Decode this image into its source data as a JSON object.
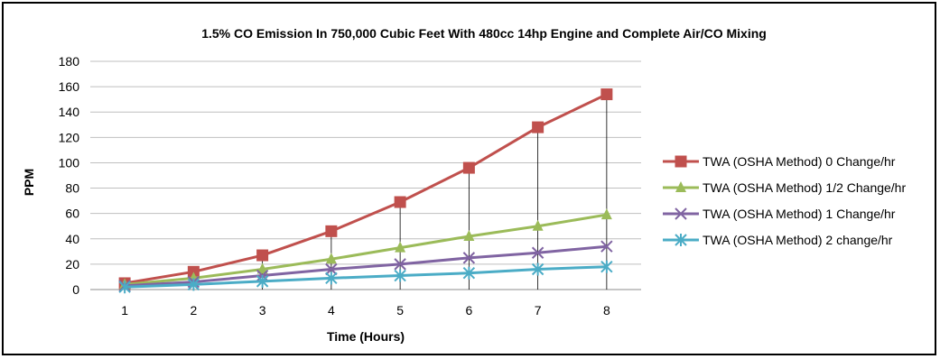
{
  "chart_data": {
    "type": "line",
    "title": "1.5% CO Emission In 750,000 Cubic Feet With 480cc 14hp Engine and Complete Air/CO Mixing",
    "xlabel": "Time (Hours)",
    "ylabel": "PPM",
    "x": [
      1,
      2,
      3,
      4,
      5,
      6,
      7,
      8
    ],
    "ylim": [
      0,
      180
    ],
    "yticks": [
      0,
      20,
      40,
      60,
      80,
      100,
      120,
      140,
      160,
      180
    ],
    "grid": true,
    "legend_position": "right",
    "drop_lines": true,
    "series": [
      {
        "name": "TWA (OSHA Method) 0 Change/hr",
        "color": "#c0504d",
        "marker": "square",
        "values": [
          5,
          14,
          27,
          46,
          69,
          96,
          128,
          154
        ]
      },
      {
        "name": "TWA (OSHA Method) 1/2 Change/hr",
        "color": "#9bbb59",
        "marker": "triangle",
        "values": [
          4,
          9,
          16,
          24,
          33,
          42,
          50,
          59
        ]
      },
      {
        "name": "TWA (OSHA Method) 1 Change/hr",
        "color": "#8064a2",
        "marker": "x",
        "values": [
          3,
          6,
          11,
          16,
          20,
          25,
          29,
          34
        ]
      },
      {
        "name": "TWA (OSHA Method) 2 change/hr",
        "color": "#4bacc6",
        "marker": "star",
        "values": [
          2,
          4,
          6.5,
          9,
          11,
          13,
          16,
          18
        ]
      }
    ]
  }
}
